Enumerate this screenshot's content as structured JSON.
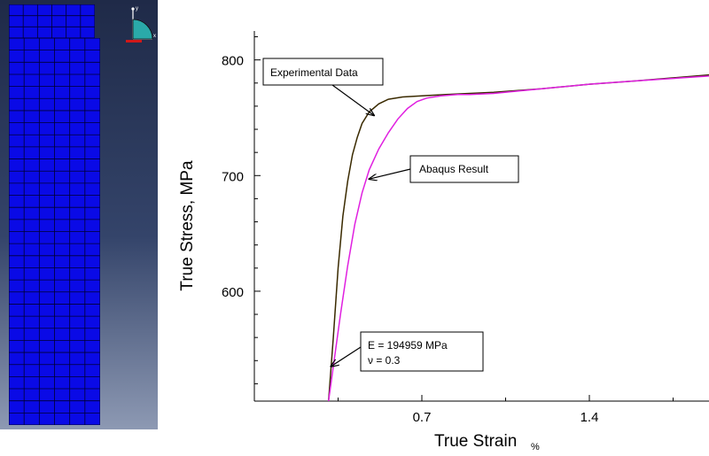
{
  "viewport": {
    "background_top": "#1f2a48",
    "background_bottom": "#8d99b3",
    "mesh_color": "#0a0ae6",
    "mesh_line_color": "#000033",
    "triad": {
      "y_label": "y",
      "x_label": "x",
      "icon": "coordinate-triad-icon"
    }
  },
  "chart_data": {
    "type": "line",
    "title": "",
    "xlabel": "True Strain",
    "xlabel_unit": "%",
    "ylabel": "True Stress, MPa",
    "xlim": [
      0.0,
      1.9
    ],
    "ylim": [
      505,
      825
    ],
    "x_ticks": [
      0.7,
      1.4
    ],
    "y_ticks": [
      600,
      700,
      800
    ],
    "grid": false,
    "series": [
      {
        "color": "#3a2a00",
        "x": [
          0.31,
          0.33,
          0.35,
          0.37,
          0.39,
          0.41,
          0.43,
          0.45,
          0.48,
          0.52,
          0.56,
          0.62,
          0.7,
          0.8,
          0.9,
          1.0,
          1.2,
          1.4,
          1.6,
          1.9
        ],
        "y": [
          505,
          560,
          620,
          665,
          695,
          718,
          733,
          745,
          755,
          762,
          766,
          768,
          769,
          770,
          771,
          772,
          775,
          779,
          782,
          787
        ]
      },
      {
        "color": "#e020e0",
        "x": [
          0.31,
          0.33,
          0.36,
          0.39,
          0.42,
          0.45,
          0.48,
          0.52,
          0.56,
          0.6,
          0.64,
          0.68,
          0.72,
          0.78,
          0.85,
          0.9,
          1.0,
          1.2,
          1.4,
          1.6,
          1.9
        ],
        "y": [
          505,
          535,
          580,
          622,
          658,
          685,
          705,
          723,
          737,
          749,
          758,
          764,
          767,
          769,
          770,
          770,
          771,
          775,
          779,
          782,
          786
        ]
      }
    ],
    "annotations": [
      {
        "text": "Experimental Data",
        "target": [
          0.5,
          752
        ]
      },
      {
        "text": "Abaqus Result",
        "target": [
          0.48,
          697
        ]
      },
      {
        "text": "E = 194959 MPa",
        "line2": "ν = 0.3",
        "target": [
          0.32,
          535
        ]
      }
    ]
  }
}
